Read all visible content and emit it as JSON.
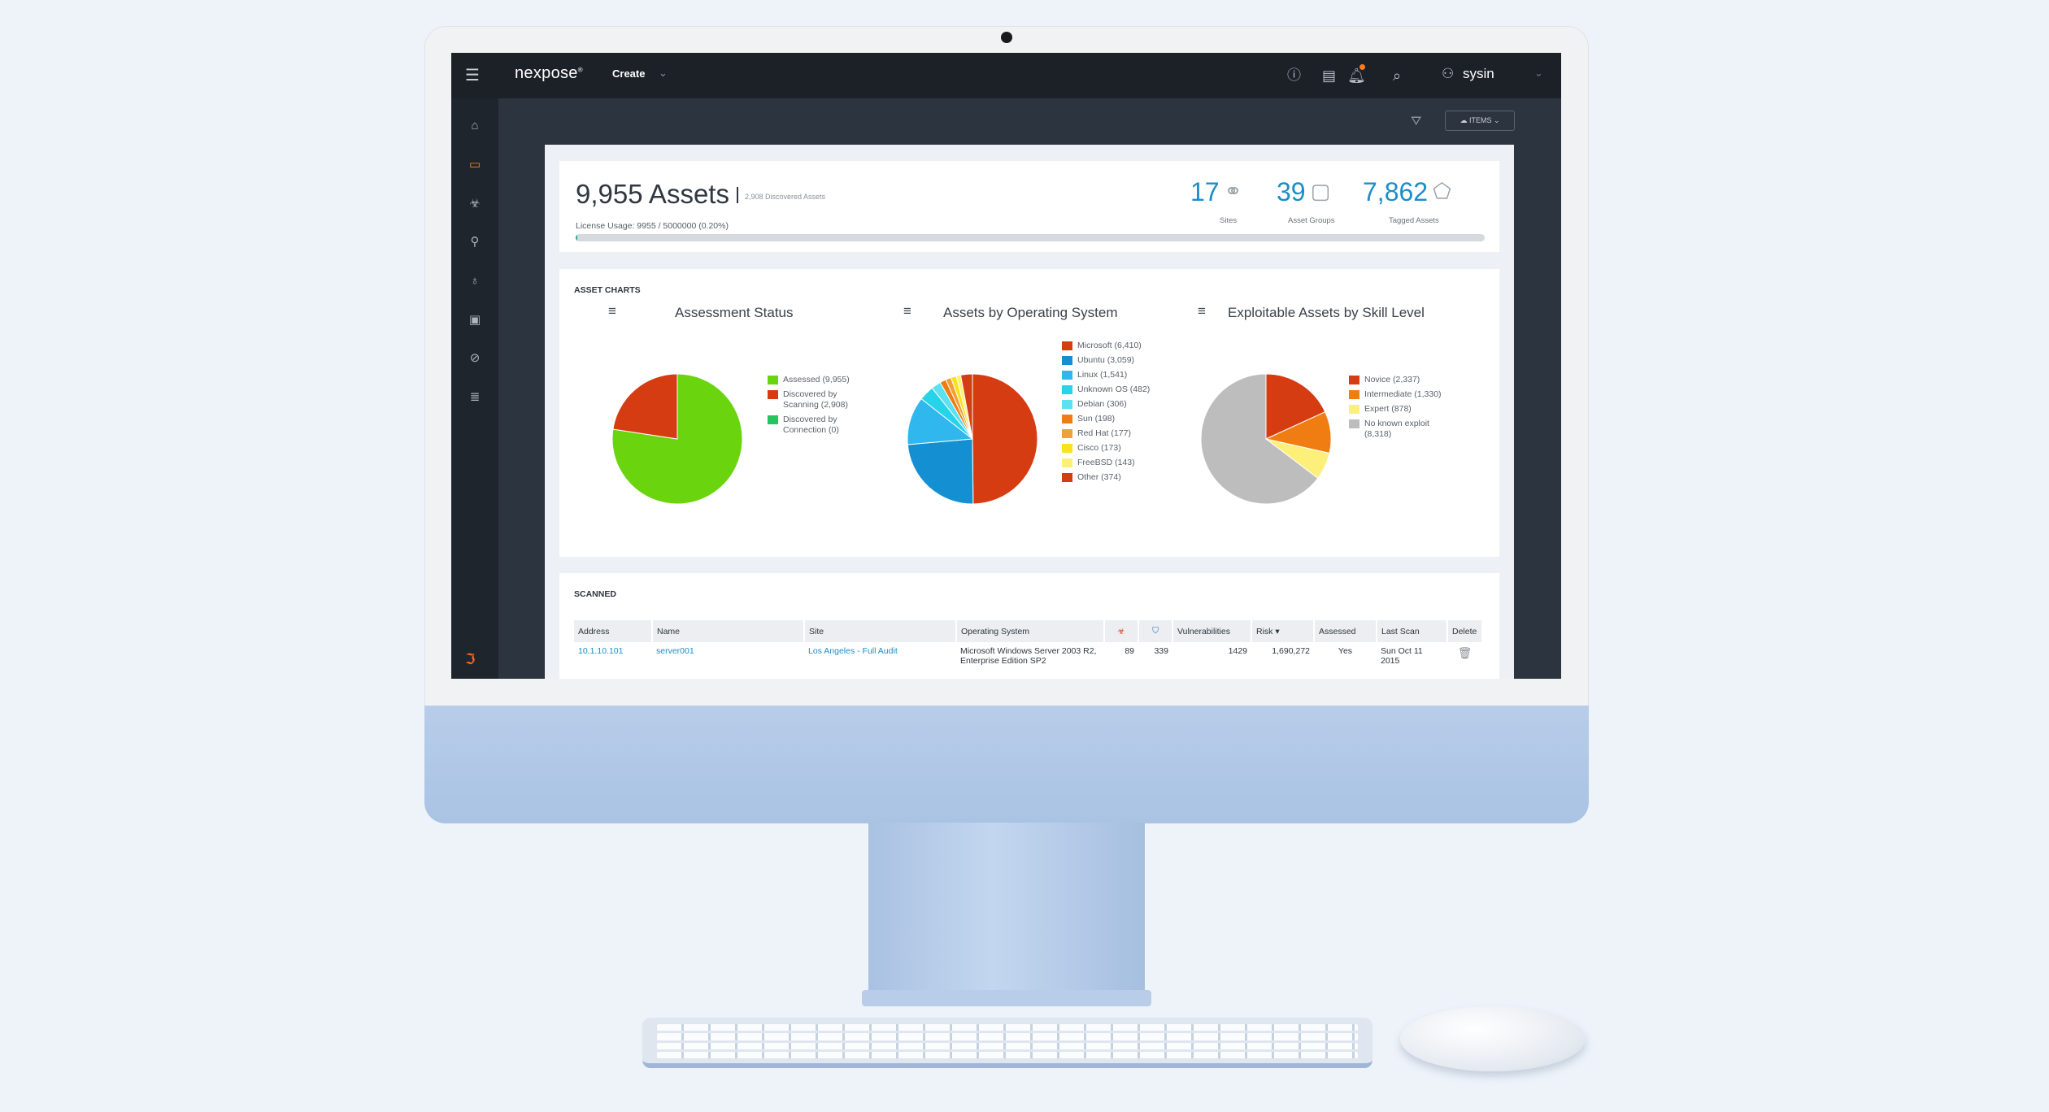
{
  "app": {
    "logo": "nexpose",
    "logo_mark": "®",
    "create_label": "Create",
    "user": "sysin"
  },
  "toolbar": {
    "items_label": "ITEMS"
  },
  "summary": {
    "assets": "9,955 Assets",
    "discovered": "2,908 Discovered Assets",
    "license": "License Usage: 9955 / 5000000 (0.20%)",
    "license_fraction": 0.002,
    "stats": [
      {
        "value": "17",
        "label": "Sites",
        "icon": "network-icon"
      },
      {
        "value": "39",
        "label": "Asset Groups",
        "icon": "asset-group-icon"
      },
      {
        "value": "7,862",
        "label": "Tagged Assets",
        "icon": "tag-icon"
      }
    ]
  },
  "charts_section": {
    "title": "ASSET CHARTS"
  },
  "chart_data": [
    {
      "type": "pie",
      "title": "Assessment Status",
      "slices": [
        {
          "label": "Assessed (9,955)",
          "value": 9955,
          "color": "#6ad40e"
        },
        {
          "label": "Discovered by Scanning (2,908)",
          "value": 2908,
          "color": "#d63c12"
        },
        {
          "label": "Discovered by Connection (0)",
          "value": 0,
          "color": "#22c55e"
        }
      ]
    },
    {
      "type": "pie",
      "title": "Assets by Operating System",
      "slices": [
        {
          "label": "Microsoft (6,410)",
          "value": 6410,
          "color": "#d63c12"
        },
        {
          "label": "Ubuntu (3,059)",
          "value": 3059,
          "color": "#148fd1"
        },
        {
          "label": "Linux (1,541)",
          "value": 1541,
          "color": "#2fb7ee"
        },
        {
          "label": "Unknown OS (482)",
          "value": 482,
          "color": "#26d3e8"
        },
        {
          "label": "Debian (306)",
          "value": 306,
          "color": "#5de0f0"
        },
        {
          "label": "Sun (198)",
          "value": 198,
          "color": "#f07d12"
        },
        {
          "label": "Red Hat (177)",
          "value": 177,
          "color": "#f0a03a"
        },
        {
          "label": "Cisco (173)",
          "value": 173,
          "color": "#fbe21d"
        },
        {
          "label": "FreeBSD (143)",
          "value": 143,
          "color": "#fdf07a"
        },
        {
          "label": "Other (374)",
          "value": 374,
          "color": "#d63c12"
        }
      ]
    },
    {
      "type": "pie",
      "title": "Exploitable Assets by Skill Level",
      "slices": [
        {
          "label": "Novice (2,337)",
          "value": 2337,
          "color": "#d63c12"
        },
        {
          "label": "Intermediate (1,330)",
          "value": 1330,
          "color": "#f07d12"
        },
        {
          "label": "Expert (878)",
          "value": 878,
          "color": "#fdf07a"
        },
        {
          "label": "No known exploit (8,318)",
          "value": 8318,
          "color": "#bdbdbd"
        }
      ]
    }
  ],
  "scanned": {
    "title": "SCANNED",
    "columns": [
      "Address",
      "Name",
      "Site",
      "Operating System",
      "",
      "",
      "Vulnerabilities",
      "Risk",
      "Assessed",
      "Last Scan",
      "Delete"
    ],
    "rows": [
      [
        "10.1.10.101",
        "server001",
        "Los Angeles - Full Audit",
        "Microsoft Windows Server 2003 R2, Enterprise Edition SP2",
        "89",
        "339",
        "1429",
        "1,690,272",
        "Yes",
        "Sun Oct 11 2015",
        ""
      ]
    ]
  }
}
